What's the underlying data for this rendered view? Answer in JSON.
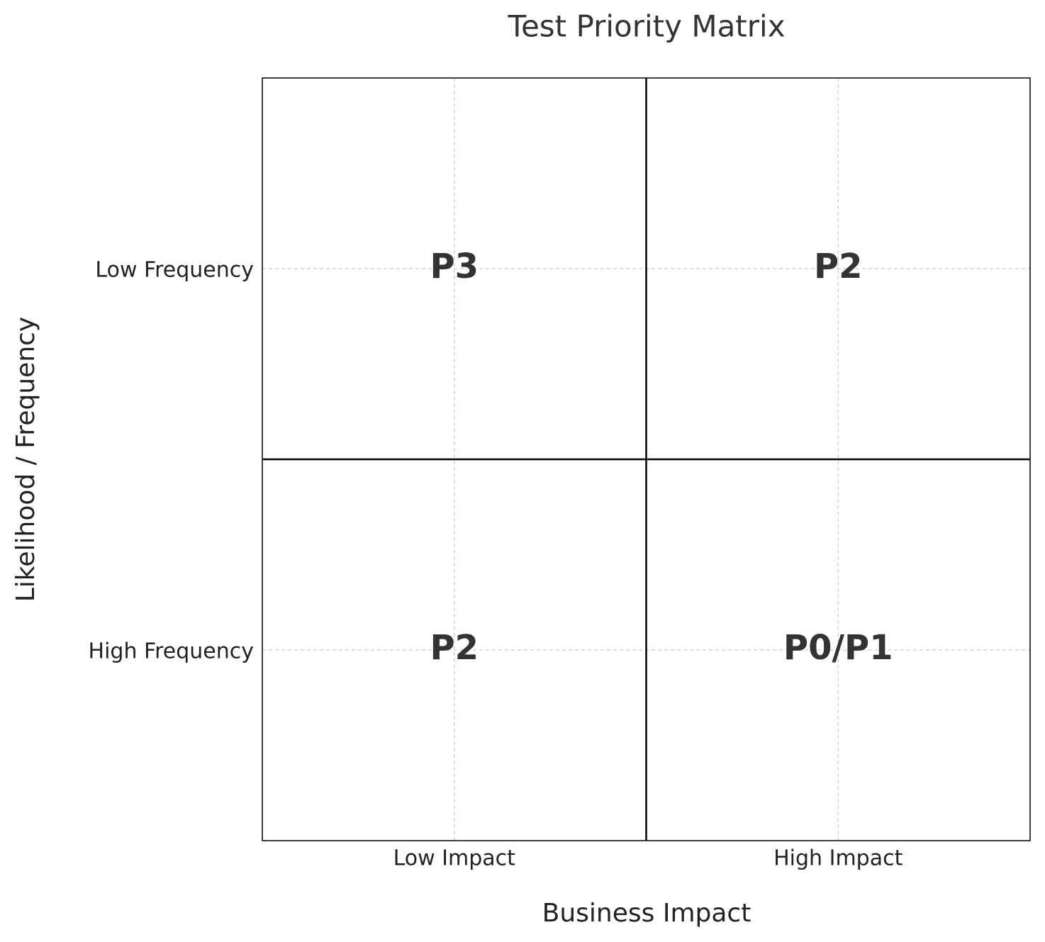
{
  "chart_data": {
    "type": "matrix",
    "title": "Test Priority Matrix",
    "xlabel": "Business Impact",
    "ylabel": "Likelihood / Frequency",
    "x_categories": [
      "Low Impact",
      "High Impact"
    ],
    "y_categories": [
      "Low Frequency",
      "High Frequency"
    ],
    "cells": [
      [
        "P3",
        "P2"
      ],
      [
        "P2",
        "P0/P1"
      ]
    ],
    "grid": true
  }
}
